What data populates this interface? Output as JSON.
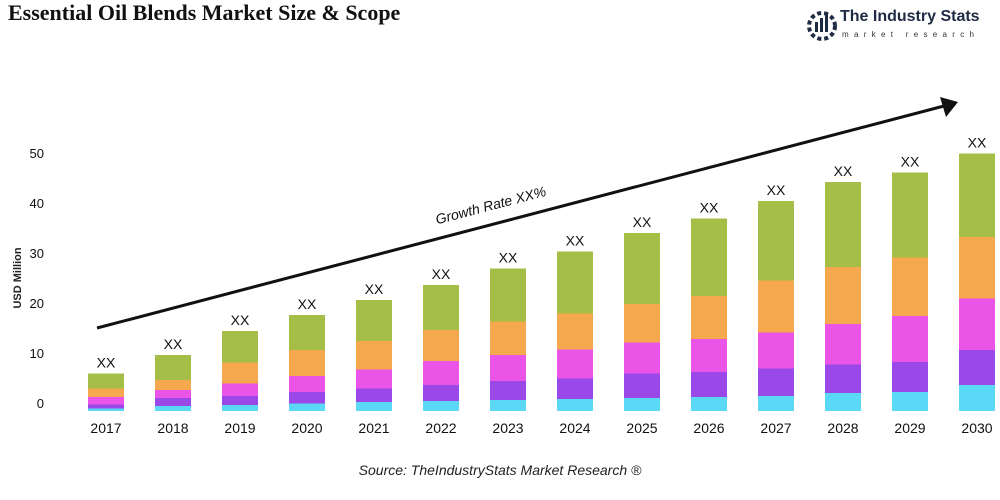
{
  "header": {
    "title": "Essential Oil Blends Market Size & Scope"
  },
  "logo": {
    "name": "The Industry Stats",
    "tagline": "market research",
    "icon": "factory-gear-icon"
  },
  "source": "Source: TheIndustryStats Market Research ®",
  "chart_data": {
    "type": "bar",
    "stacked": true,
    "categories": [
      "2017",
      "2018",
      "2019",
      "2020",
      "2021",
      "2022",
      "2023",
      "2024",
      "2025",
      "2026",
      "2027",
      "2028",
      "2029",
      "2030"
    ],
    "series": [
      {
        "color": "#5ad8f5",
        "values": [
          0.5,
          1.0,
          1.2,
          1.5,
          1.8,
          2.0,
          2.2,
          2.4,
          2.6,
          2.8,
          3.0,
          3.6,
          3.8,
          5.2
        ]
      },
      {
        "color": "#9a48e8",
        "values": [
          0.8,
          1.6,
          1.8,
          2.3,
          2.7,
          3.2,
          3.8,
          4.1,
          4.9,
          5.0,
          5.5,
          5.7,
          6.0,
          7.0
        ]
      },
      {
        "color": "#ea55e8",
        "values": [
          1.5,
          1.6,
          2.5,
          3.2,
          3.8,
          4.8,
          5.2,
          5.8,
          6.2,
          6.6,
          7.2,
          8.1,
          9.2,
          10.3
        ]
      },
      {
        "color": "#f5a84e",
        "values": [
          1.7,
          2.0,
          4.2,
          5.2,
          5.7,
          6.2,
          6.7,
          7.2,
          7.7,
          8.6,
          10.4,
          11.4,
          11.7,
          12.3
        ]
      },
      {
        "color": "#a5be47",
        "values": [
          3.0,
          5.0,
          6.3,
          7.0,
          8.2,
          9.0,
          10.6,
          12.4,
          14.2,
          15.5,
          15.9,
          17.0,
          17.0,
          16.7
        ]
      }
    ],
    "data_labels": [
      "XX",
      "XX",
      "XX",
      "XX",
      "XX",
      "XX",
      "XX",
      "XX",
      "XX",
      "XX",
      "XX",
      "XX",
      "XX",
      "XX"
    ],
    "ylabel": "USD Million",
    "yticks": [
      0,
      10,
      20,
      30,
      40,
      50
    ],
    "ylim": [
      0,
      50
    ],
    "grid": false,
    "legend": "none",
    "annotation": "Growth Rate XX%"
  }
}
